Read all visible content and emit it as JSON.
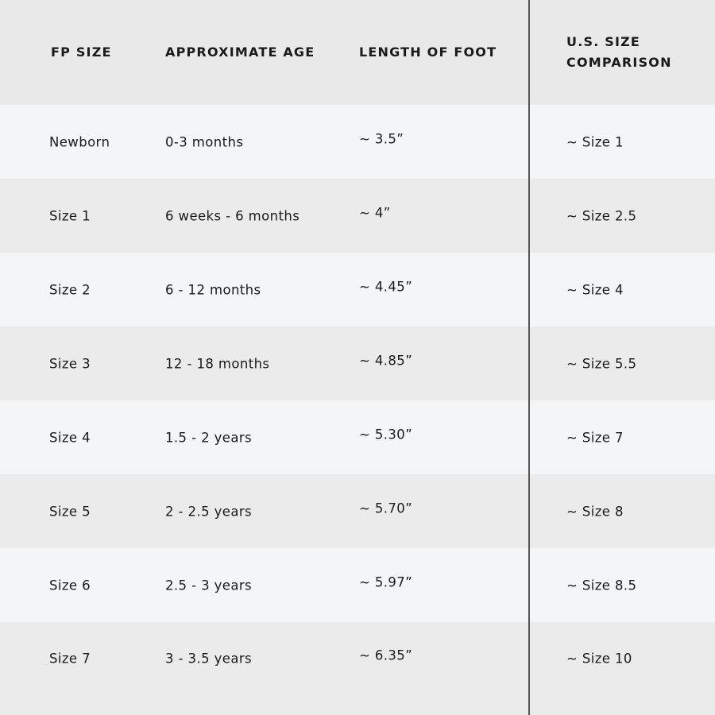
{
  "table": {
    "headers": [
      "FP SIZE",
      "APPROXIMATE AGE",
      "LENGTH OF FOOT",
      "U.S. SIZE COMPARISON"
    ],
    "rows": [
      [
        "Newborn",
        "0-3 months",
        "~ 3.5”",
        "~ Size 1"
      ],
      [
        "Size 1",
        "6 weeks - 6 months",
        "~ 4”",
        "~ Size 2.5"
      ],
      [
        "Size 2",
        "6 - 12 months",
        "~ 4.45”",
        "~ Size 4"
      ],
      [
        "Size 3",
        "12 - 18 months",
        "~ 4.85”",
        "~ Size 5.5"
      ],
      [
        "Size 4",
        "1.5 - 2 years",
        "~ 5.30”",
        "~ Size 7"
      ],
      [
        "Size 5",
        "2 - 2.5 years",
        "~ 5.70”",
        "~ Size 8"
      ],
      [
        "Size 6",
        "2.5 - 3 years",
        "~ 5.97”",
        "~ Size 8.5"
      ],
      [
        "Size 7",
        "3 - 3.5 years",
        "~ 6.35”",
        "~ Size 10"
      ]
    ]
  },
  "colors": {
    "header_bg": "#e9e9e9",
    "row_light": "#f4f5f7",
    "row_dark": "#ebebeb",
    "divider": "#555555"
  }
}
